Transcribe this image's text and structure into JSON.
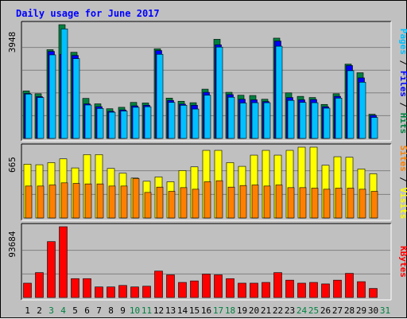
{
  "chart_data": {
    "title": "Daily usage for June 2017",
    "days": [
      "1",
      "2",
      "3",
      "4",
      "5",
      "6",
      "7",
      "8",
      "9",
      "10",
      "11",
      "12",
      "13",
      "14",
      "15",
      "16",
      "17",
      "18",
      "19",
      "20",
      "21",
      "22",
      "23",
      "24",
      "25",
      "26",
      "27",
      "28",
      "29",
      "30",
      "31"
    ],
    "weekend_days": [
      "3",
      "4",
      "10",
      "11",
      "17",
      "18",
      "24",
      "25",
      "31"
    ],
    "panels": [
      {
        "type": "bar",
        "ylabel_max": "3948",
        "ymax": 3948,
        "right_label": [
          {
            "text": "Pages",
            "color": "#00c0ff"
          },
          {
            "text": " / ",
            "color": "#000000"
          },
          {
            "text": "Files",
            "color": "#0000ff"
          },
          {
            "text": " / ",
            "color": "#000000"
          },
          {
            "text": "Hits",
            "color": "#008040"
          }
        ],
        "series": [
          {
            "name": "Hits",
            "color": "#008040",
            "values": [
              1650,
              1550,
              3080,
              3948,
              2990,
              1390,
              1200,
              1030,
              1080,
              1250,
              1230,
              3110,
              1400,
              1290,
              1240,
              1710,
              3440,
              1600,
              1500,
              1490,
              1360,
              3480,
              1580,
              1460,
              1420,
              1180,
              1550,
              2580,
              2280,
              840,
              0
            ]
          },
          {
            "name": "Files",
            "color": "#0000ff",
            "values": [
              1560,
              1450,
              3020,
              2920,
              2880,
              1200,
              1100,
              940,
              990,
              1130,
              1150,
              3050,
              1320,
              1190,
              1150,
              1600,
              3250,
              1520,
              1360,
              1340,
              1280,
              3380,
              1420,
              1340,
              1350,
              1100,
              1460,
              2530,
              2100,
              800,
              0
            ]
          },
          {
            "name": "Pages",
            "color": "#00c0ff",
            "values": [
              1540,
              1420,
              2900,
              3800,
              2770,
              1160,
              1040,
              910,
              950,
              1080,
              1100,
              2920,
              1250,
              1150,
              1020,
              1500,
              3170,
              1430,
              1230,
              1240,
              1240,
              3200,
              1320,
              1250,
              1240,
              1050,
              1400,
              2350,
              1950,
              730,
              0
            ]
          }
        ]
      },
      {
        "type": "bar",
        "ylabel_max": "665",
        "ymax": 665,
        "right_label": [
          {
            "text": "Sites",
            "color": "#ff8000"
          },
          {
            "text": " / ",
            "color": "#000000"
          },
          {
            "text": "Visits",
            "color": "#ffff00"
          }
        ],
        "series": [
          {
            "name": "Visits",
            "color": "#ffff00",
            "values": [
              505,
              500,
              520,
              555,
              470,
              595,
              595,
              465,
              420,
              375,
              345,
              385,
              340,
              445,
              480,
              635,
              635,
              520,
              485,
              590,
              635,
              590,
              635,
              665,
              665,
              495,
              575,
              570,
              460,
              415,
              0
            ]
          },
          {
            "name": "Sites",
            "color": "#ff8000",
            "values": [
              300,
              300,
              310,
              330,
              325,
              320,
              320,
              300,
              300,
              370,
              240,
              290,
              250,
              285,
              270,
              340,
              350,
              290,
              305,
              310,
              300,
              310,
              285,
              285,
              280,
              270,
              280,
              280,
              270,
              250,
              0
            ]
          }
        ]
      },
      {
        "type": "bar",
        "ylabel_max": "93684",
        "ymax": 93684,
        "right_label": [
          {
            "text": "KBytes",
            "color": "#ff0000"
          }
        ],
        "series": [
          {
            "name": "KBytes",
            "color": "#ff0000",
            "values": [
              19000,
              33000,
              74000,
              93684,
              25000,
              25000,
              14000,
              14000,
              16000,
              14000,
              15000,
              35000,
              30000,
              20000,
              22000,
              31000,
              30000,
              25000,
              19000,
              19000,
              20000,
              33000,
              23000,
              19000,
              20000,
              18000,
              23000,
              32000,
              21000,
              12000,
              0
            ]
          }
        ]
      }
    ]
  }
}
